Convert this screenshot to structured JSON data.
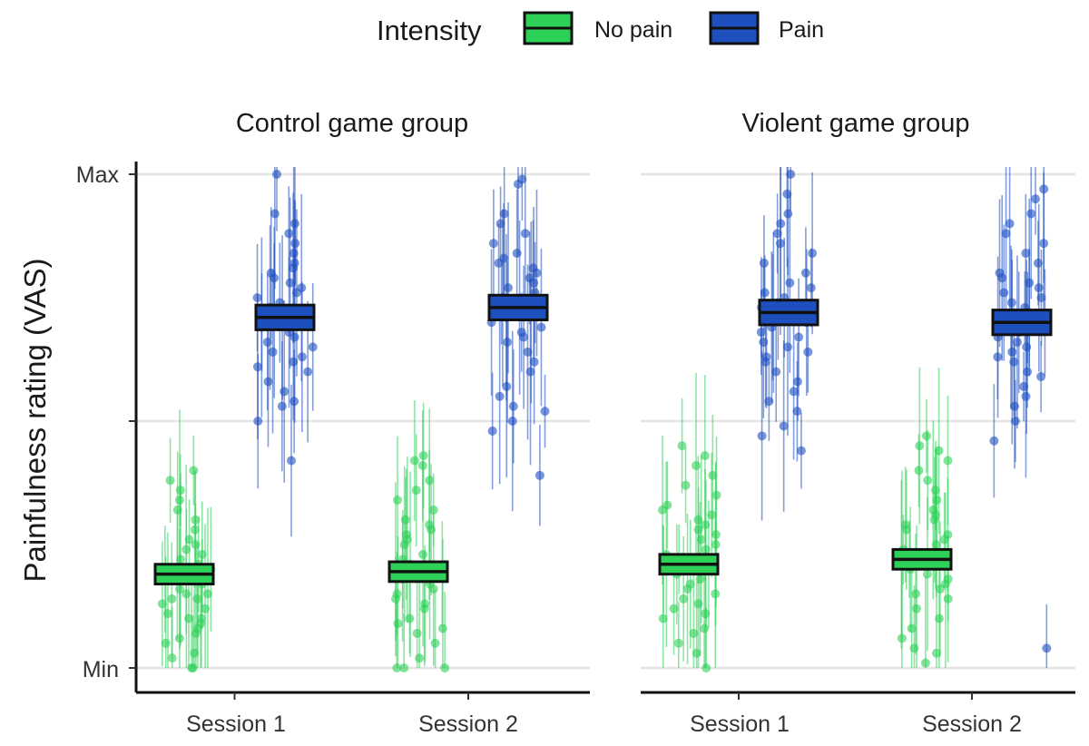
{
  "chart_data": {
    "type": "scatter",
    "subtype": "jittered dot plot with per-participant error bars and group mean crossbars",
    "legend": {
      "position": "top",
      "title": "Intensity",
      "entries": [
        {
          "name": "No pain",
          "color": "#2ed158"
        },
        {
          "name": "Pain",
          "color": "#1e4fbf"
        }
      ]
    },
    "y_axis": {
      "label": "Painfulness rating (VAS)",
      "range": [
        0,
        100
      ],
      "ticks": [
        {
          "value": 0,
          "label": "Min"
        },
        {
          "value": 50,
          "label": ""
        },
        {
          "value": 100,
          "label": "Max"
        }
      ]
    },
    "x_categories": [
      "Session 1",
      "Session 2"
    ],
    "grid": true,
    "facets": [
      {
        "title": "Control game group",
        "means": [
          {
            "session": "Session 1",
            "intensity": "No pain",
            "mean": 19,
            "half_width": 2
          },
          {
            "session": "Session 1",
            "intensity": "Pain",
            "mean": 71,
            "half_width": 2.5
          },
          {
            "session": "Session 2",
            "intensity": "No pain",
            "mean": 19.5,
            "half_width": 2
          },
          {
            "session": "Session 2",
            "intensity": "Pain",
            "mean": 73,
            "half_width": 2.5
          }
        ],
        "points": [
          {
            "session": "Session 1",
            "intensity": "No pain",
            "values": [
              0,
              0,
              3,
              5,
              7,
              8,
              9,
              10,
              11,
              12,
              13,
              14,
              14,
              15,
              16,
              17,
              18,
              19,
              20,
              21,
              22,
              23,
              24,
              25,
              26,
              28,
              30,
              32,
              34,
              36,
              38,
              40,
              2,
              6,
              10,
              15
            ]
          },
          {
            "session": "Session 1",
            "intensity": "Pain",
            "values": [
              42,
              50,
              53,
              54,
              56,
              58,
              60,
              61,
              62,
              63,
              64,
              65,
              66,
              67,
              68,
              69,
              70,
              71,
              72,
              73,
              74,
              75,
              76,
              77,
              78,
              79,
              80,
              81,
              82,
              84,
              86,
              88,
              90,
              92,
              100
            ]
          },
          {
            "session": "Session 2",
            "intensity": "No pain",
            "values": [
              0,
              0,
              0,
              2,
              5,
              7,
              9,
              10,
              12,
              14,
              15,
              16,
              17,
              18,
              19,
              20,
              21,
              22,
              23,
              25,
              26,
              27,
              28,
              29,
              30,
              32,
              34,
              36,
              38,
              41,
              42,
              43,
              8,
              13
            ]
          },
          {
            "session": "Session 2",
            "intensity": "Pain",
            "values": [
              39,
              48,
              50,
              52,
              53,
              55,
              57,
              60,
              62,
              64,
              66,
              67,
              68,
              69,
              70,
              71,
              72,
              73,
              74,
              75,
              76,
              77,
              78,
              79,
              80,
              81,
              82,
              83,
              84,
              86,
              88,
              90,
              92,
              98,
              99
            ]
          }
        ]
      },
      {
        "title": "Violent game group",
        "means": [
          {
            "session": "Session 1",
            "intensity": "No pain",
            "mean": 21,
            "half_width": 2
          },
          {
            "session": "Session 1",
            "intensity": "Pain",
            "mean": 72,
            "half_width": 2.5
          },
          {
            "session": "Session 2",
            "intensity": "No pain",
            "mean": 22,
            "half_width": 2
          },
          {
            "session": "Session 2",
            "intensity": "Pain",
            "mean": 70,
            "half_width": 2.5
          }
        ],
        "points": [
          {
            "session": "Session 1",
            "intensity": "No pain",
            "values": [
              0,
              3,
              5,
              7,
              8,
              10,
              11,
              12,
              13,
              14,
              15,
              16,
              17,
              18,
              19,
              20,
              21,
              22,
              23,
              24,
              25,
              26,
              27,
              28,
              29,
              30,
              31,
              32,
              33,
              35,
              37,
              39,
              41,
              43,
              45
            ]
          },
          {
            "session": "Session 1",
            "intensity": "Pain",
            "values": [
              44,
              47,
              49,
              52,
              54,
              56,
              58,
              60,
              62,
              63,
              64,
              65,
              66,
              67,
              68,
              69,
              70,
              71,
              72,
              73,
              74,
              75,
              76,
              77,
              78,
              80,
              82,
              84,
              86,
              88,
              90,
              92,
              96,
              100
            ]
          },
          {
            "session": "Session 2",
            "intensity": "No pain",
            "values": [
              1,
              3,
              4,
              6,
              8,
              10,
              12,
              14,
              15,
              16,
              17,
              18,
              19,
              20,
              21,
              22,
              23,
              24,
              25,
              26,
              27,
              28,
              29,
              30,
              31,
              32,
              34,
              36,
              38,
              40,
              42,
              44,
              45,
              47
            ]
          },
          {
            "session": "Session 2",
            "intensity": "Pain",
            "values": [
              4,
              46,
              50,
              53,
              55,
              57,
              59,
              60,
              62,
              63,
              64,
              65,
              66,
              67,
              68,
              69,
              70,
              71,
              72,
              73,
              74,
              75,
              76,
              77,
              78,
              79,
              80,
              82,
              84,
              86,
              88,
              90,
              92,
              95,
              97
            ]
          }
        ]
      }
    ]
  }
}
